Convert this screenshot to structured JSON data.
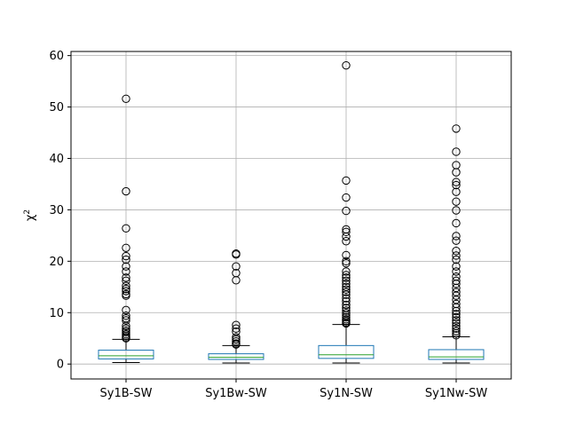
{
  "chart_data": {
    "type": "box",
    "categories": [
      "Sy1B-SW",
      "Sy1Bw-SW",
      "Sy1N-SW",
      "Sy1Nw-SW"
    ],
    "ylabel": "χ²",
    "ylabel_base": "χ",
    "ylabel_sup": "2",
    "xlabel": "",
    "title": "",
    "ylim": [
      -2.9,
      60.8
    ],
    "yticks": [
      0,
      10,
      20,
      30,
      40,
      50,
      60
    ],
    "grid": true,
    "legend": "none",
    "colors": {
      "box": "#1f77b4",
      "median": "#2ca02c",
      "whisker": "#000000",
      "flier": "#000000",
      "grid": "#b0b0b0"
    },
    "boxes": [
      {
        "name": "Sy1B-SW",
        "whislo": 0.3,
        "q1": 1.0,
        "med": 1.6,
        "q3": 2.7,
        "whishi": 4.8,
        "fliers": [
          51.6,
          33.6,
          26.4,
          22.6,
          21.0,
          20.3,
          19.0,
          18.0,
          16.8,
          16.2,
          15.2,
          14.6,
          14.2,
          13.6,
          13.3,
          10.5,
          9.4,
          8.9,
          8.5,
          7.4,
          6.9,
          6.5,
          6.2,
          5.8,
          5.5,
          5.2,
          5.0
        ]
      },
      {
        "name": "Sy1Bw-SW",
        "whislo": 0.2,
        "q1": 0.9,
        "med": 1.3,
        "q3": 2.0,
        "whishi": 3.6,
        "fliers": [
          21.5,
          21.3,
          19.0,
          17.7,
          16.3,
          7.6,
          6.9,
          6.3,
          5.2,
          4.8,
          4.4,
          4.0,
          3.8
        ]
      },
      {
        "name": "Sy1N-SW",
        "whislo": 0.2,
        "q1": 1.1,
        "med": 1.8,
        "q3": 3.6,
        "whishi": 7.7,
        "fliers": [
          58.1,
          35.7,
          32.4,
          29.8,
          26.2,
          25.7,
          24.8,
          23.9,
          21.2,
          20.0,
          19.6,
          18.0,
          17.3,
          16.8,
          16.2,
          15.6,
          15.0,
          14.5,
          14.0,
          13.5,
          12.8,
          12.2,
          11.5,
          10.9,
          10.4,
          9.9,
          9.5,
          9.1,
          8.7,
          8.4,
          8.1,
          7.9
        ]
      },
      {
        "name": "Sy1Nw-SW",
        "whislo": 0.2,
        "q1": 0.9,
        "med": 1.4,
        "q3": 2.8,
        "whishi": 5.3,
        "fliers": [
          45.8,
          41.3,
          38.7,
          37.3,
          35.4,
          34.8,
          33.5,
          31.6,
          29.9,
          27.4,
          24.9,
          24.0,
          22.0,
          21.1,
          20.3,
          19.0,
          18.0,
          17.0,
          16.2,
          15.6,
          14.8,
          14.0,
          13.3,
          12.5,
          11.7,
          11.0,
          10.3,
          9.7,
          9.1,
          8.5,
          8.0,
          7.4,
          6.9,
          6.4,
          6.0,
          5.6
        ]
      }
    ]
  }
}
